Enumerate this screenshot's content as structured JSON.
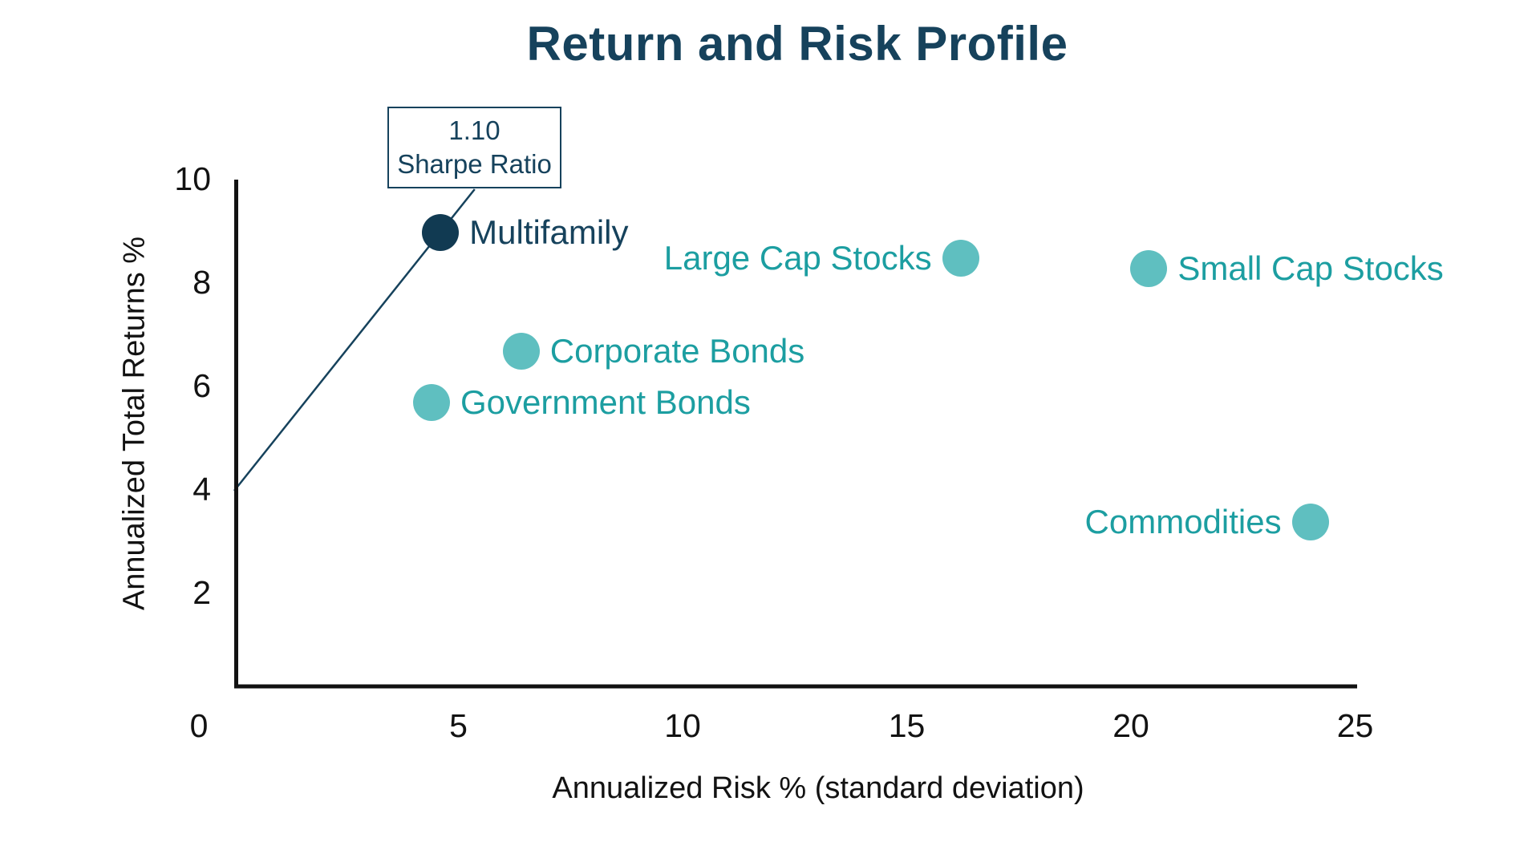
{
  "title": "Return and Risk Profile",
  "annotation": {
    "value": "1.10",
    "label": "Sharpe Ratio"
  },
  "axes": {
    "x": {
      "label": "Annualized Risk % (standard deviation)",
      "ticks": [
        "0",
        "5",
        "10",
        "15",
        "20",
        "25"
      ]
    },
    "y": {
      "label": "Annualized Total Returns %",
      "ticks": [
        "2",
        "4",
        "6",
        "8",
        "10"
      ]
    }
  },
  "chart_data": {
    "type": "scatter",
    "title": "Return and Risk Profile",
    "xlabel": "Annualized Risk % (standard deviation)",
    "ylabel": "Annualized Total Returns %",
    "xlim": [
      0,
      25
    ],
    "ylim": [
      0,
      10
    ],
    "grid": false,
    "points": [
      {
        "name": "Multifamily",
        "x": 4.6,
        "y": 9.0,
        "color_key": "navy",
        "label_side": "right"
      },
      {
        "name": "Large Cap Stocks",
        "x": 16.2,
        "y": 8.5,
        "color_key": "teal",
        "label_side": "left"
      },
      {
        "name": "Small Cap Stocks",
        "x": 20.4,
        "y": 8.3,
        "color_key": "teal",
        "label_side": "right"
      },
      {
        "name": "Corporate Bonds",
        "x": 6.4,
        "y": 6.7,
        "color_key": "teal",
        "label_side": "right"
      },
      {
        "name": "Government Bonds",
        "x": 4.4,
        "y": 5.7,
        "color_key": "teal",
        "label_side": "right"
      },
      {
        "name": "Commodities",
        "x": 24.0,
        "y": 3.4,
        "color_key": "teal",
        "label_side": "left"
      }
    ],
    "sharpe_line": {
      "from": {
        "x": 0,
        "y": 4
      },
      "through_point": "Multifamily",
      "annotation": "1.10 Sharpe Ratio"
    }
  },
  "colors": {
    "navy": "#113A52",
    "navy_text": "#16425C",
    "teal": "#5FBFC0",
    "teal_text": "#1C9EA1",
    "axis": "#121212"
  }
}
